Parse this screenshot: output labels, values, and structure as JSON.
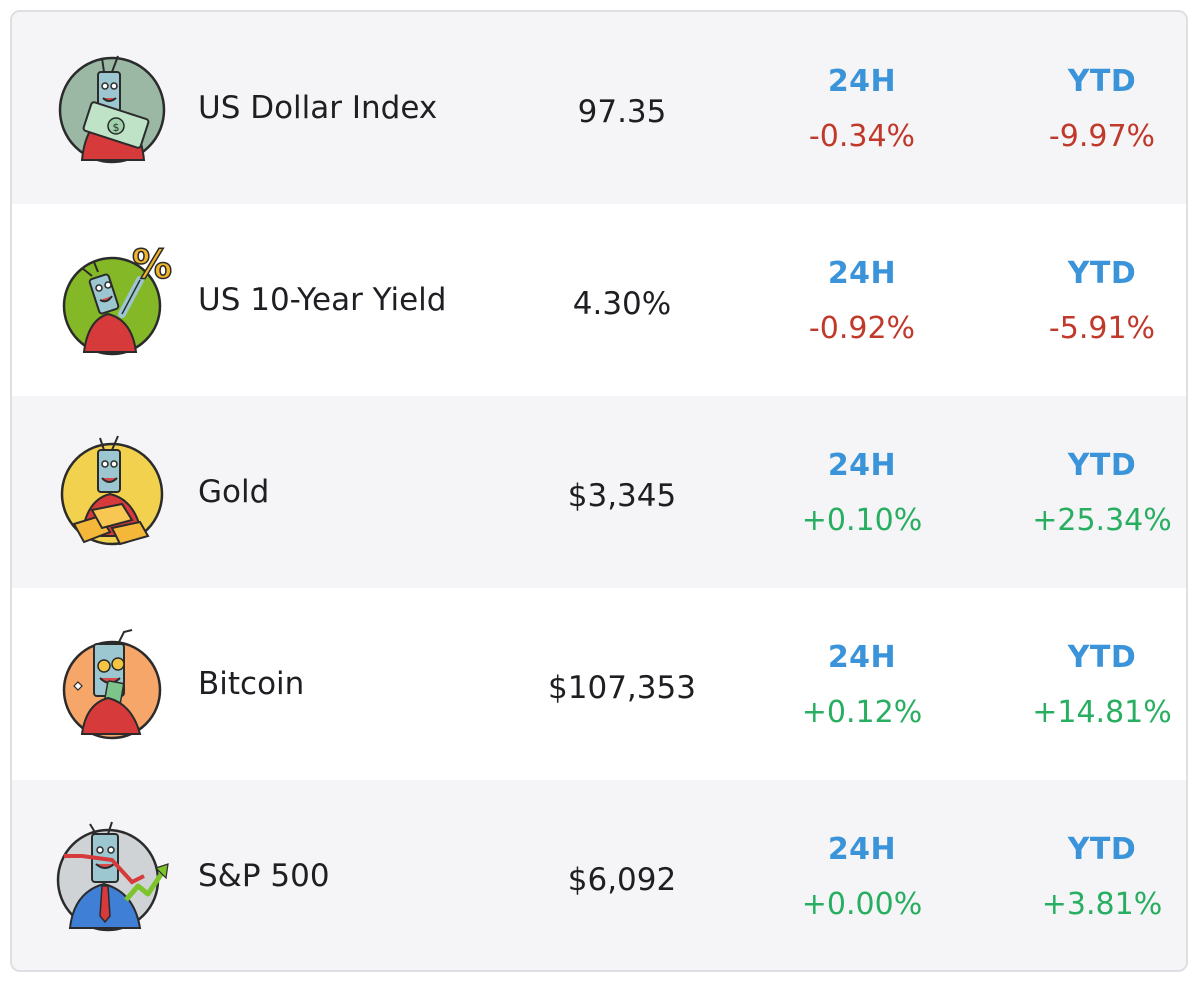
{
  "colors": {
    "header_blue": "#3b94d9",
    "negative_red": "#c0392b",
    "positive_green": "#27ae60"
  },
  "rows": [
    {
      "name": "US Dollar Index",
      "price": "97.35",
      "h24_label": "24H",
      "h24_value": "-0.34%",
      "h24_trend": "negative",
      "ytd_label": "YTD",
      "ytd_value": "-9.97%",
      "ytd_trend": "negative",
      "icon": "dollar-bill-mascot-icon",
      "icon_bg": "#9ab8a4"
    },
    {
      "name": "US 10-Year Yield",
      "price": "4.30%",
      "h24_label": "24H",
      "h24_value": "-0.92%",
      "h24_trend": "negative",
      "ytd_label": "YTD",
      "ytd_value": "-5.91%",
      "ytd_trend": "negative",
      "icon": "percent-sign-mascot-icon",
      "icon_bg": "#84b827"
    },
    {
      "name": "Gold",
      "price": "$3,345",
      "h24_label": "24H",
      "h24_value": "+0.10%",
      "h24_trend": "positive",
      "ytd_label": "YTD",
      "ytd_value": "+25.34%",
      "ytd_trend": "positive",
      "icon": "gold-bars-mascot-icon",
      "icon_bg": "#f2d14f"
    },
    {
      "name": "Bitcoin",
      "price": "$107,353",
      "h24_label": "24H",
      "h24_value": "+0.12%",
      "h24_trend": "positive",
      "ytd_label": "YTD",
      "ytd_value": "+14.81%",
      "ytd_trend": "positive",
      "icon": "bitcoin-mascot-icon",
      "icon_bg": "#f7a66a"
    },
    {
      "name": "S&P 500",
      "price": "$6,092",
      "h24_label": "24H",
      "h24_value": "+0.00%",
      "h24_trend": "positive",
      "ytd_label": "YTD",
      "ytd_value": "+3.81%",
      "ytd_trend": "positive",
      "icon": "stock-chart-mascot-icon",
      "icon_bg": "#cfd3d6"
    }
  ]
}
